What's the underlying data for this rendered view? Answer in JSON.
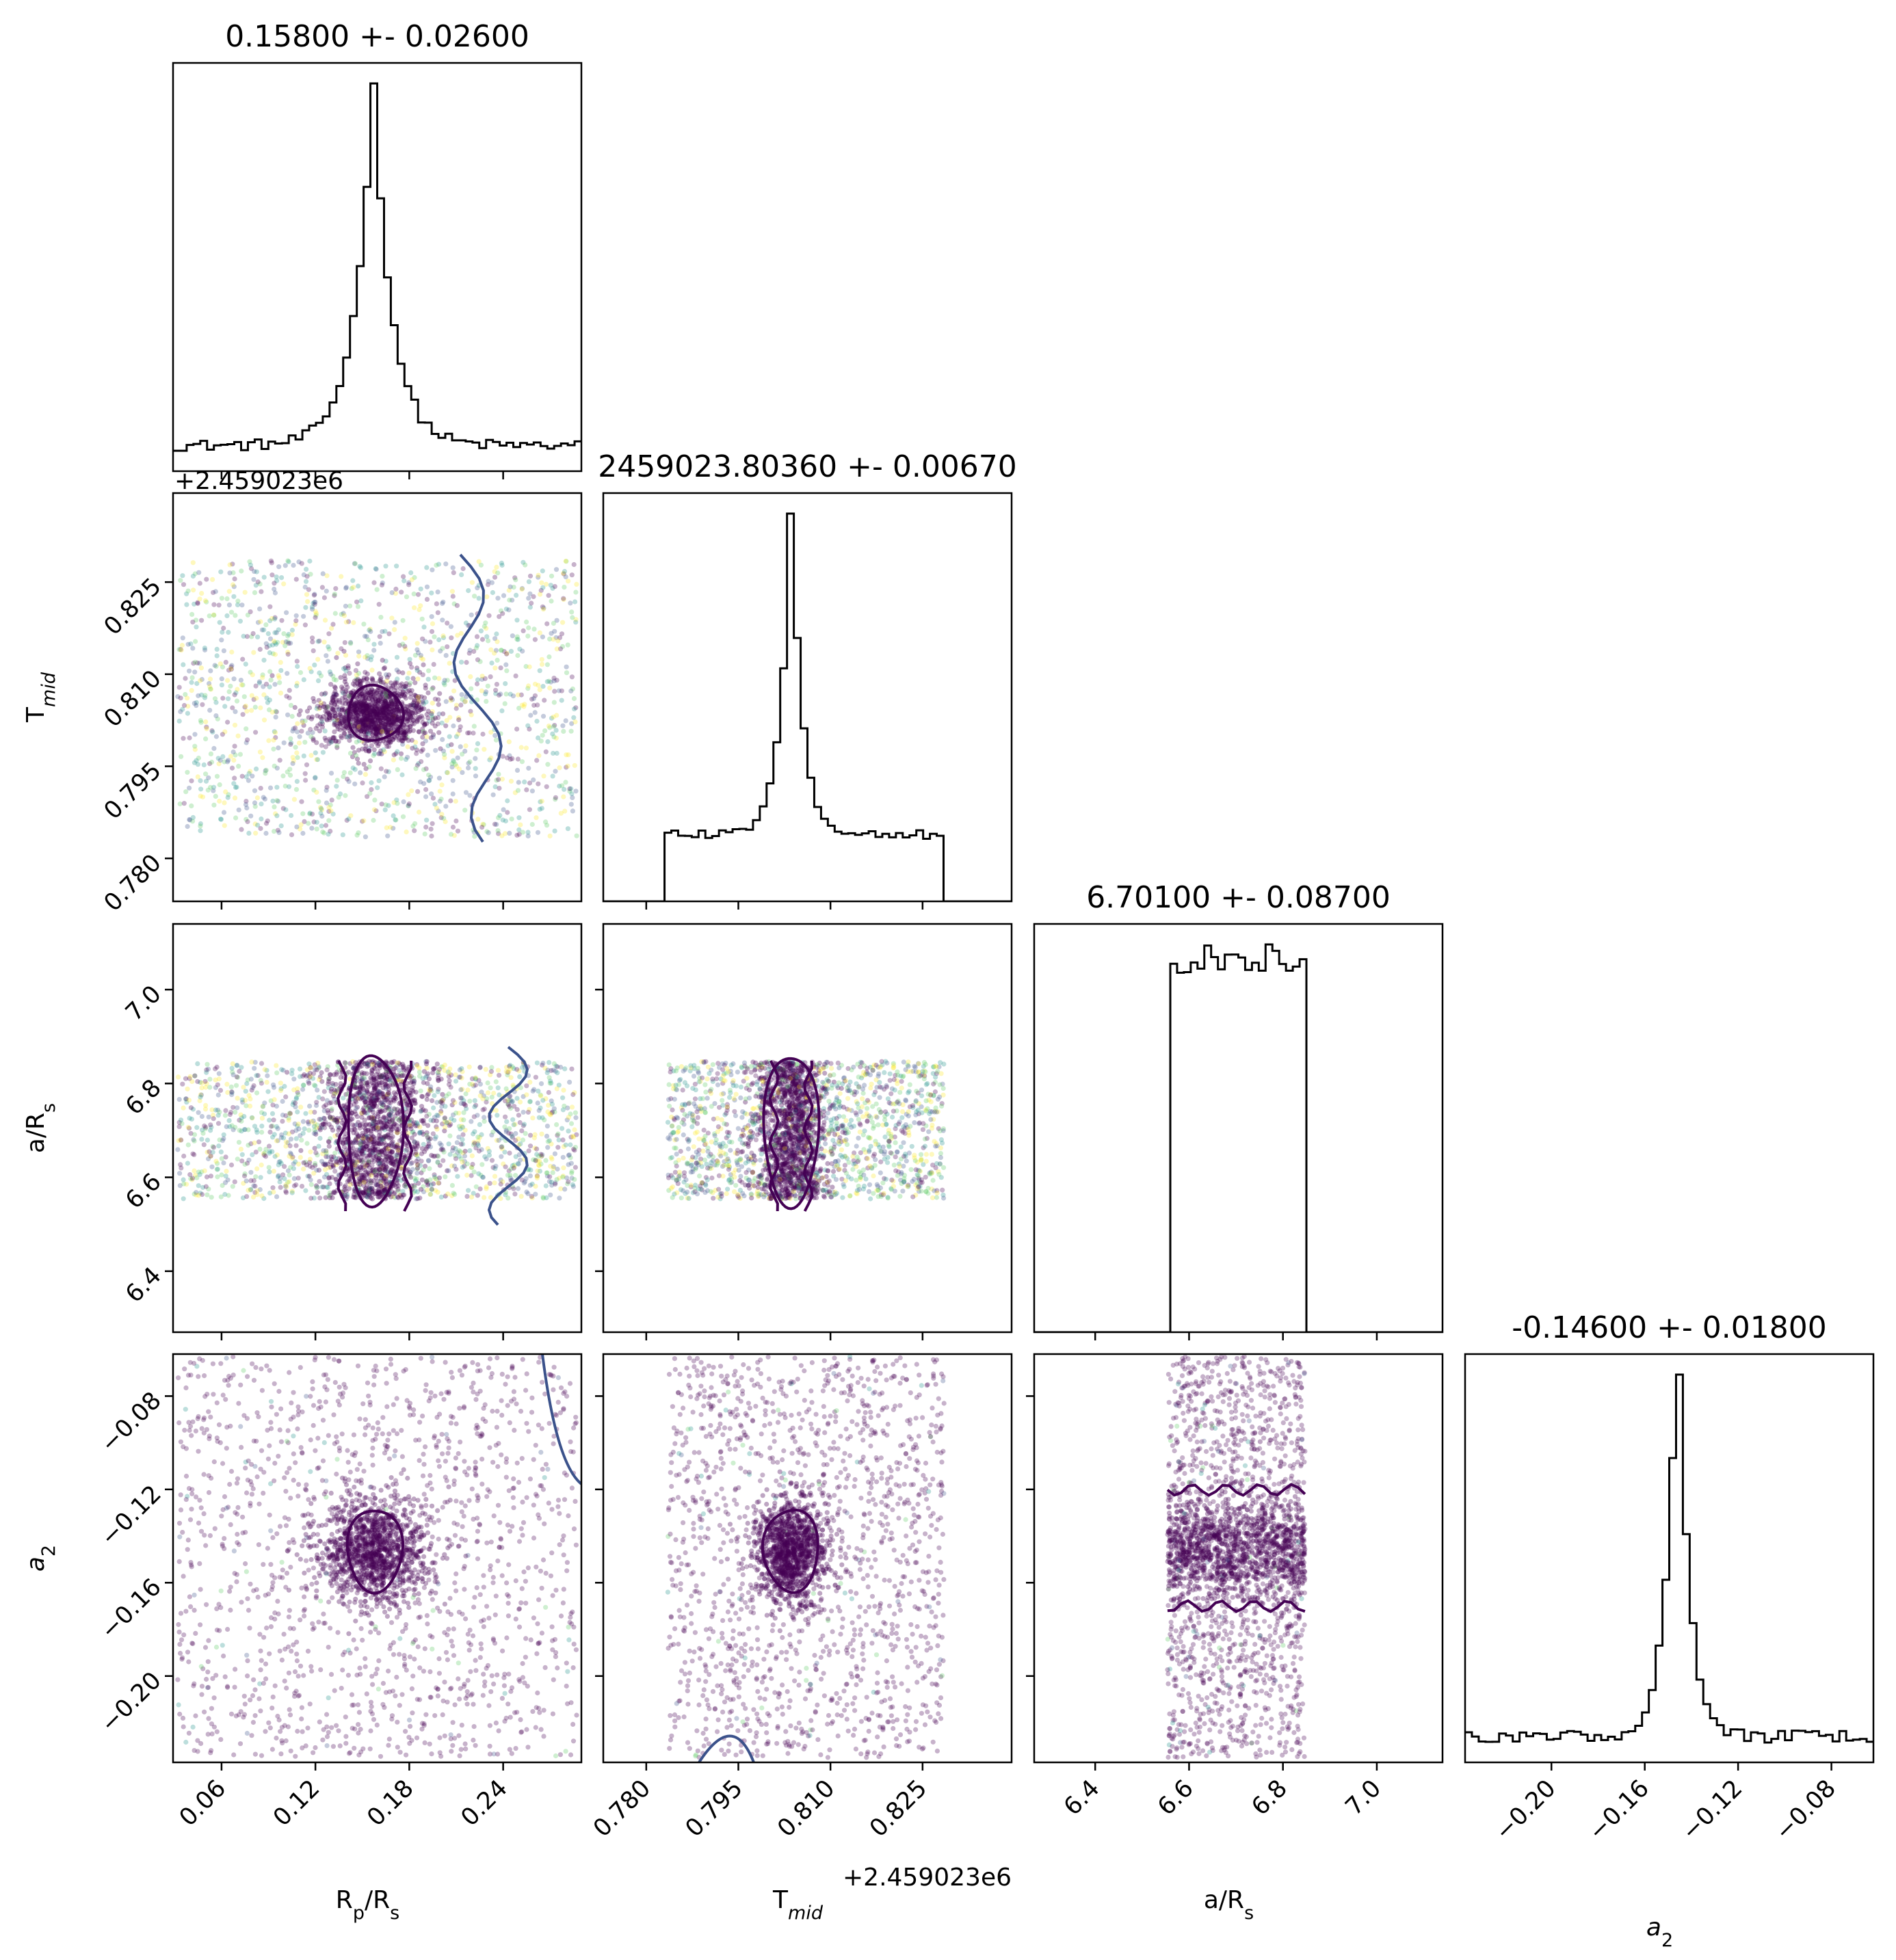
{
  "figure": {
    "type": "corner-plot",
    "colormap": "viridis"
  },
  "chart_data": {
    "type": "corner",
    "parameters": [
      {
        "key": "rp",
        "label": "R_p/R_s",
        "label_parts": [
          [
            "R",
            ""
          ],
          [
            "p",
            "sub"
          ],
          [
            "/R",
            ""
          ],
          [
            "s",
            "sub"
          ]
        ],
        "title": "0.15800 +- 0.02600",
        "mean": 0.158,
        "std": 0.026,
        "range": [
          0.029,
          0.29
        ],
        "ticks": [
          0.06,
          0.12,
          0.18,
          0.24
        ],
        "tick_labels": [
          "0.06",
          "0.12",
          "0.18",
          "0.24"
        ],
        "hist": {
          "type": "peaked",
          "center": 0.157,
          "width": 0.012,
          "base": 0.07,
          "peak_at": 0.157
        }
      },
      {
        "key": "tmid",
        "label": "T_mid",
        "label_parts": [
          [
            "T",
            ""
          ],
          [
            "mid",
            "sub-italic"
          ]
        ],
        "title": "2459023.80360 +- 0.00670",
        "mean": 0.8036,
        "std": 0.0067,
        "offset": "+2.459023e6",
        "range": [
          0.773,
          0.8395
        ],
        "ticks": [
          0.78,
          0.795,
          0.81,
          0.825
        ],
        "tick_labels": [
          "0.780",
          "0.795",
          "0.810",
          "0.825"
        ],
        "hist": {
          "type": "peaked-box",
          "center": 0.8036,
          "width": 0.0018,
          "box": [
            0.7835,
            0.8285
          ],
          "base": 0.2
        }
      },
      {
        "key": "ars",
        "label": "a/R_s",
        "label_parts": [
          [
            "a/R",
            ""
          ],
          [
            "s",
            "sub"
          ]
        ],
        "title": "6.70100 +- 0.08700",
        "mean": 6.701,
        "std": 0.087,
        "range": [
          6.27,
          7.14
        ],
        "ticks": [
          6.4,
          6.6,
          6.8,
          7.0
        ],
        "tick_labels": [
          "6.4",
          "6.6",
          "6.8",
          "7.0"
        ],
        "hist": {
          "type": "uniform",
          "box": [
            6.554,
            6.847
          ]
        }
      },
      {
        "key": "a2",
        "label": "a_2",
        "label_parts": [
          [
            "a",
            "italic"
          ],
          [
            "2",
            "sub"
          ]
        ],
        "title": "-0.14600 +- 0.01800",
        "mean": -0.146,
        "std": 0.018,
        "range": [
          -0.237,
          -0.062
        ],
        "ticks": [
          -0.2,
          -0.16,
          -0.12,
          -0.08
        ],
        "tick_labels": [
          "−0.20",
          "−0.16",
          "−0.12",
          "−0.08"
        ],
        "hist": {
          "type": "peaked",
          "center": -0.146,
          "width": 0.005,
          "base": 0.06,
          "peak_at": -0.146
        }
      }
    ],
    "scatter": {
      "points_per_panel": 2600,
      "core_fraction": 0.45,
      "point_colors": [
        "#440154",
        "#3b528b",
        "#21918c",
        "#5ec962",
        "#fde725"
      ]
    },
    "contour_levels": [
      "inner",
      "outer"
    ],
    "contour_colors": [
      "#440154",
      "#3b528b"
    ]
  }
}
